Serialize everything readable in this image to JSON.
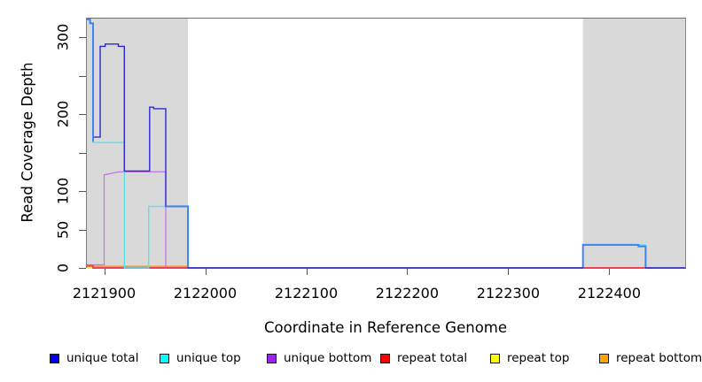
{
  "figure": {
    "background": "#ffffff",
    "shade_color": "#d9d9d9",
    "box_color": "#6e6e6e",
    "tick_color": "#555555",
    "text_color": "#000000",
    "overlap_line_color": "#3d86f0"
  },
  "chart_data": {
    "type": "line",
    "title": "",
    "xlabel": "Coordinate in Reference Genome",
    "ylabel": "Read Coverage Depth",
    "xlim": [
      2121882,
      2122476
    ],
    "ylim": [
      0,
      325
    ],
    "grid": false,
    "legend_position": "bottom",
    "x_ticks": [
      {
        "value": 2121900,
        "label": "2121900"
      },
      {
        "value": 2122000,
        "label": "2122000"
      },
      {
        "value": 2122100,
        "label": "2122100"
      },
      {
        "value": 2122200,
        "label": "2122200"
      },
      {
        "value": 2122300,
        "label": "2122300"
      },
      {
        "value": 2122400,
        "label": "2122400"
      }
    ],
    "y_ticks": [
      {
        "value": 0,
        "label": "0"
      },
      {
        "value": 50,
        "label": "50"
      },
      {
        "value": 100,
        "label": "100"
      },
      {
        "value": 150,
        "label": ""
      },
      {
        "value": 200,
        "label": "200"
      },
      {
        "value": 250,
        "label": ""
      },
      {
        "value": 300,
        "label": "300"
      }
    ],
    "shaded_regions": [
      {
        "x0": 2121882,
        "x1": 2121983
      },
      {
        "x0": 2122374,
        "x1": 2122476
      }
    ],
    "series": [
      {
        "name": "repeat top",
        "color": "#ffee00",
        "width": 1.2,
        "points": [
          [
            2121882,
            0
          ],
          [
            2122476,
            0
          ]
        ]
      },
      {
        "name": "repeat bottom",
        "color": "#ff9913",
        "width": 1.6,
        "points": [
          [
            2121882,
            2
          ],
          [
            2121983,
            2
          ],
          [
            2121983,
            0
          ],
          [
            2122476,
            0
          ]
        ]
      },
      {
        "name": "unique bottom",
        "color": "#c177e8",
        "width": 1.3,
        "points": [
          [
            2121882,
            4
          ],
          [
            2121900,
            4
          ],
          [
            2121900,
            121
          ],
          [
            2121915,
            125
          ],
          [
            2121961,
            125
          ],
          [
            2121961,
            0
          ],
          [
            2122476,
            0
          ]
        ]
      },
      {
        "name": "repeat total",
        "color": "#ef4458",
        "width": 1.9,
        "points": [
          [
            2121882,
            3
          ],
          [
            2121889,
            3
          ],
          [
            2121889,
            0
          ],
          [
            2122476,
            0
          ]
        ]
      },
      {
        "name": "unique top",
        "color": "#55e4ee",
        "width": 1.4,
        "points": [
          [
            2121882,
            323
          ],
          [
            2121886,
            323
          ],
          [
            2121886,
            318
          ],
          [
            2121889,
            318
          ],
          [
            2121889,
            163
          ],
          [
            2121920,
            163
          ],
          [
            2121920,
            0
          ],
          [
            2121944,
            0
          ],
          [
            2121944,
            80
          ],
          [
            2121983,
            80
          ],
          [
            2121983,
            0
          ],
          [
            2122374,
            0
          ],
          [
            2122374,
            30
          ],
          [
            2122436,
            30
          ],
          [
            2122436,
            0
          ],
          [
            2122476,
            0
          ]
        ]
      },
      {
        "name": "unique total",
        "color": "#2a2ad0",
        "width": 1.4,
        "points": [
          [
            2121882,
            325
          ],
          [
            2121886,
            325
          ],
          [
            2121886,
            318
          ],
          [
            2121889,
            318
          ],
          [
            2121889,
            170
          ],
          [
            2121896,
            170
          ],
          [
            2121896,
            288
          ],
          [
            2121901,
            288
          ],
          [
            2121901,
            291
          ],
          [
            2121914,
            291
          ],
          [
            2121914,
            288
          ],
          [
            2121920,
            288
          ],
          [
            2121920,
            126
          ],
          [
            2121945,
            126
          ],
          [
            2121945,
            209
          ],
          [
            2121949,
            209
          ],
          [
            2121949,
            207
          ],
          [
            2121961,
            207
          ],
          [
            2121961,
            80
          ],
          [
            2121983,
            80
          ],
          [
            2121983,
            0
          ],
          [
            2122374,
            0
          ],
          [
            2122374,
            30
          ],
          [
            2122429,
            30
          ],
          [
            2122429,
            28
          ],
          [
            2122436,
            28
          ],
          [
            2122436,
            0
          ],
          [
            2122476,
            0
          ]
        ]
      }
    ],
    "overlap_segments": {
      "note": "where unique total overlaps unique top the line renders azure",
      "color": "#3d86f0",
      "width": 2,
      "paths": [
        [
          [
            2121882,
            323
          ],
          [
            2121886,
            323
          ],
          [
            2121886,
            318
          ],
          [
            2121889,
            318
          ],
          [
            2121889,
            164
          ]
        ],
        [
          [
            2121961,
            80
          ],
          [
            2121983,
            80
          ],
          [
            2121983,
            1
          ]
        ],
        [
          [
            2122374,
            1
          ],
          [
            2122374,
            30
          ],
          [
            2122429,
            30
          ],
          [
            2122429,
            28
          ],
          [
            2122436,
            28
          ],
          [
            2122436,
            1
          ]
        ]
      ]
    }
  },
  "legend": {
    "items": [
      {
        "label": "unique total",
        "color": "#0000ff"
      },
      {
        "label": "unique top",
        "color": "#00ffff"
      },
      {
        "label": "unique bottom",
        "color": "#a020f0"
      },
      {
        "label": "repeat total",
        "color": "#ff0000"
      },
      {
        "label": "repeat top",
        "color": "#ffff00"
      },
      {
        "label": "repeat bottom",
        "color": "#ffa500"
      }
    ]
  }
}
